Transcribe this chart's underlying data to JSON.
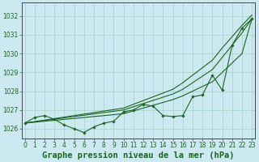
{
  "xlabel": "Graphe pression niveau de la mer (hPa)",
  "hours": [
    0,
    1,
    2,
    3,
    4,
    5,
    6,
    7,
    8,
    9,
    10,
    11,
    12,
    13,
    14,
    15,
    16,
    17,
    18,
    19,
    20,
    21,
    22,
    23
  ],
  "line_wiggly": [
    1026.3,
    1026.6,
    1026.7,
    1026.5,
    1026.2,
    1026.0,
    1025.8,
    1026.1,
    1026.3,
    1026.4,
    1026.9,
    1027.0,
    1027.3,
    1027.2,
    1026.7,
    1026.65,
    1026.7,
    1027.7,
    1027.8,
    1028.85,
    1028.05,
    1030.45,
    1031.35,
    1031.85
  ],
  "line_straight1": [
    1026.3,
    1026.37,
    1026.44,
    1026.51,
    1026.58,
    1026.65,
    1026.72,
    1026.79,
    1026.86,
    1026.93,
    1027.0,
    1027.17,
    1027.34,
    1027.51,
    1027.68,
    1027.85,
    1028.1,
    1028.45,
    1028.8,
    1029.15,
    1029.8,
    1030.45,
    1031.1,
    1031.85
  ],
  "line_straight2": [
    1026.3,
    1026.38,
    1026.46,
    1026.54,
    1026.62,
    1026.7,
    1026.78,
    1026.86,
    1026.94,
    1027.02,
    1027.1,
    1027.3,
    1027.5,
    1027.7,
    1027.9,
    1028.1,
    1028.45,
    1028.85,
    1029.25,
    1029.65,
    1030.3,
    1030.9,
    1031.5,
    1032.05
  ],
  "line_straight3": [
    1026.3,
    1026.35,
    1026.4,
    1026.45,
    1026.5,
    1026.55,
    1026.6,
    1026.65,
    1026.7,
    1026.75,
    1026.8,
    1026.95,
    1027.1,
    1027.25,
    1027.4,
    1027.55,
    1027.75,
    1028.0,
    1028.25,
    1028.5,
    1029.0,
    1029.5,
    1030.0,
    1031.85
  ],
  "background_color": "#cce8f0",
  "grid_color": "#99ccbb",
  "line_color": "#1a6620",
  "marker": "D",
  "marker_size": 1.8,
  "ylim": [
    1025.5,
    1032.7
  ],
  "yticks": [
    1026,
    1027,
    1028,
    1029,
    1030,
    1031,
    1032
  ],
  "xlim": [
    -0.3,
    23.3
  ],
  "xlabel_fontsize": 7.5,
  "label_color": "#1a6620",
  "tick_fontsize": 5.5,
  "lw": 0.8
}
